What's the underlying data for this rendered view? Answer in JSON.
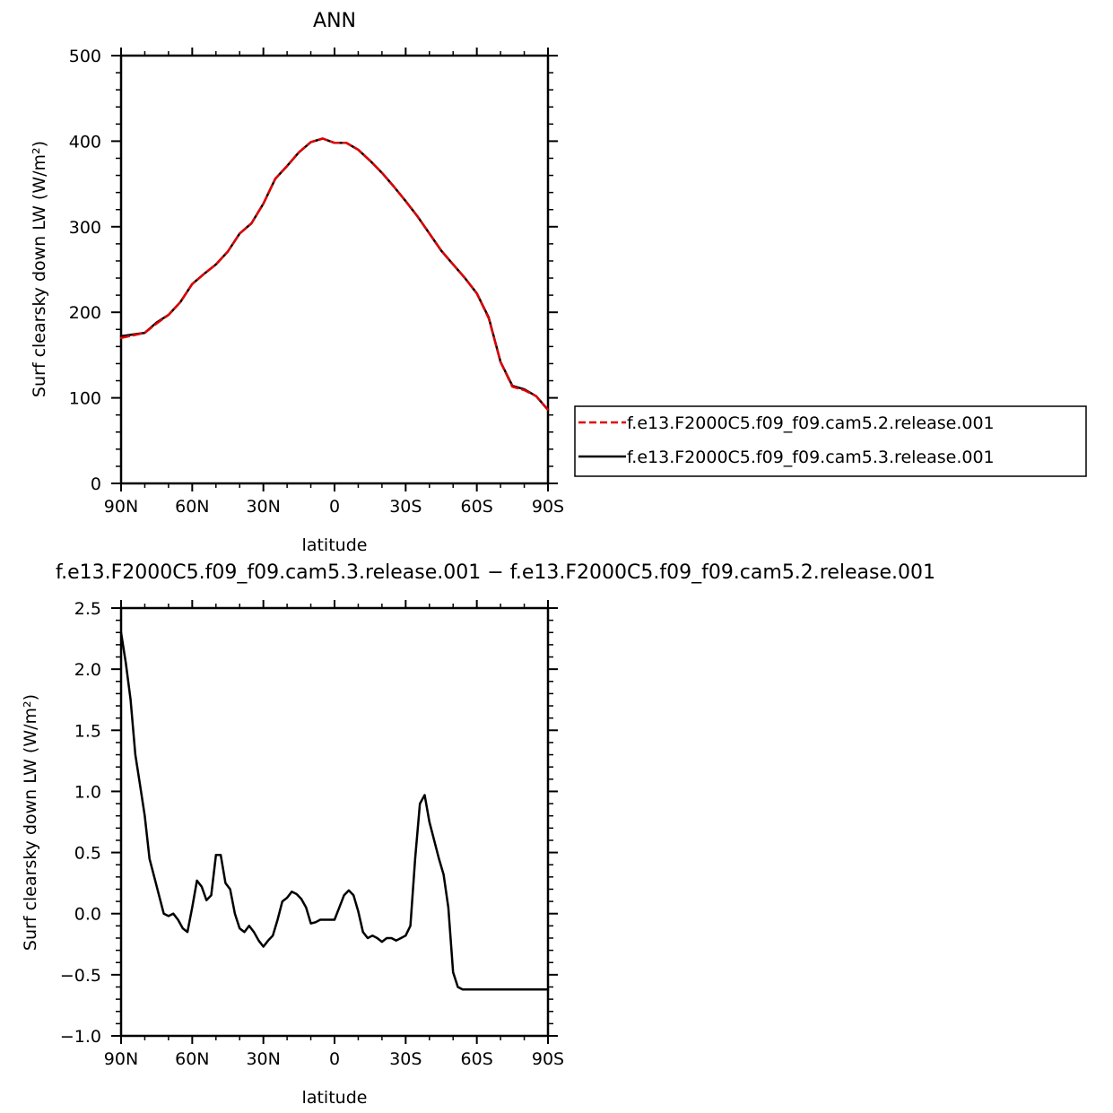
{
  "chart_data": [
    {
      "type": "line",
      "title": "ANN",
      "xlabel": "latitude",
      "ylabel": "Surf clearsky down LW (W/m²)",
      "xlim": [
        90,
        -90
      ],
      "ylim": [
        0,
        500
      ],
      "x_ticks": [
        90,
        60,
        30,
        0,
        -30,
        -60,
        -90
      ],
      "x_tick_labels": [
        "90N",
        "60N",
        "30N",
        "0",
        "30S",
        "60S",
        "90S"
      ],
      "y_ticks": [
        0,
        100,
        200,
        300,
        400,
        500
      ],
      "y_tick_labels": [
        "0",
        "100",
        "200",
        "300",
        "400",
        "500"
      ],
      "legend_position": "right",
      "series": [
        {
          "name": "f.e13.F2000C5.f09_f09.cam5.2.release.001",
          "color": "#e00000",
          "dash": "dashed",
          "x": [
            90,
            85,
            80,
            75,
            70,
            65,
            60,
            55,
            50,
            45,
            40,
            35,
            30,
            25,
            20,
            15,
            10,
            5,
            0,
            -5,
            -10,
            -15,
            -20,
            -25,
            -30,
            -35,
            -40,
            -45,
            -50,
            -55,
            -60,
            -65,
            -70,
            -75,
            -80,
            -85,
            -90
          ],
          "y": [
            170,
            173,
            176,
            187,
            197,
            212,
            233,
            245,
            256,
            271,
            292,
            304,
            327,
            356,
            371,
            387,
            399,
            403,
            398,
            398,
            390,
            377,
            363,
            347,
            330,
            312,
            292,
            272,
            256,
            240,
            222,
            193,
            142,
            113,
            109,
            102,
            86
          ]
        },
        {
          "name": "f.e13.F2000C5.f09_f09.cam5.3.release.001",
          "color": "#000000",
          "dash": "solid",
          "x": [
            90,
            85,
            80,
            75,
            70,
            65,
            60,
            55,
            50,
            45,
            40,
            35,
            30,
            25,
            20,
            15,
            10,
            5,
            0,
            -5,
            -10,
            -15,
            -20,
            -25,
            -30,
            -35,
            -40,
            -45,
            -50,
            -55,
            -60,
            -65,
            -70,
            -75,
            -80,
            -85,
            -90
          ],
          "y": [
            172,
            174,
            176,
            188,
            197,
            212,
            233,
            245,
            256,
            271,
            292,
            304,
            327,
            356,
            371,
            387,
            399,
            403,
            398,
            398,
            390,
            377,
            363,
            347,
            330,
            312,
            292,
            272,
            256,
            240,
            222,
            194,
            142,
            114,
            110,
            102,
            86
          ]
        }
      ]
    },
    {
      "type": "line",
      "title": "f.e13.F2000C5.f09_f09.cam5.3.release.001  −  f.e13.F2000C5.f09_f09.cam5.2.release.001",
      "xlabel": "latitude",
      "ylabel": "Surf clearsky down LW (W/m²)",
      "xlim": [
        90,
        -90
      ],
      "ylim": [
        -1.0,
        2.5
      ],
      "x_ticks": [
        90,
        60,
        30,
        0,
        -30,
        -60,
        -90
      ],
      "x_tick_labels": [
        "90N",
        "60N",
        "30N",
        "0",
        "30S",
        "60S",
        "90S"
      ],
      "y_ticks": [
        -1.0,
        -0.5,
        0.0,
        0.5,
        1.0,
        1.5,
        2.0,
        2.5
      ],
      "y_tick_labels": [
        "−1.0",
        "−0.5",
        "0.0",
        "0.5",
        "1.0",
        "1.5",
        "2.0",
        "2.5"
      ],
      "series": [
        {
          "color": "#000000",
          "dash": "solid",
          "x": [
            90,
            88,
            86,
            84,
            82,
            80,
            78,
            76,
            74,
            72,
            70,
            68,
            66,
            64,
            62,
            60,
            58,
            56,
            54,
            52,
            50,
            48,
            46,
            44,
            42,
            40,
            38,
            36,
            34,
            32,
            30,
            28,
            26,
            24,
            22,
            20,
            18,
            16,
            14,
            12,
            10,
            8,
            6,
            4,
            2,
            0,
            -2,
            -4,
            -6,
            -8,
            -10,
            -12,
            -14,
            -16,
            -18,
            -20,
            -22,
            -24,
            -26,
            -28,
            -30,
            -32,
            -34,
            -36,
            -38,
            -40,
            -42,
            -44,
            -46,
            -48,
            -50,
            -52,
            -54,
            -56,
            -58,
            -60,
            -62,
            -64,
            -66,
            -68,
            -70,
            -72,
            -74,
            -76,
            -78,
            -80,
            -82,
            -84,
            -86,
            -88,
            -90
          ],
          "y": [
            2.3,
            2.05,
            1.75,
            1.3,
            1.05,
            0.8,
            0.45,
            0.3,
            0.15,
            0.0,
            -0.02,
            0.0,
            -0.05,
            -0.12,
            -0.15,
            0.05,
            0.27,
            0.22,
            0.11,
            0.15,
            0.48,
            0.48,
            0.25,
            0.2,
            0.0,
            -0.12,
            -0.15,
            -0.1,
            -0.15,
            -0.22,
            -0.27,
            -0.22,
            -0.18,
            -0.05,
            0.1,
            0.13,
            0.18,
            0.16,
            0.12,
            0.05,
            -0.08,
            -0.07,
            -0.05,
            -0.05,
            -0.05,
            -0.05,
            0.05,
            0.15,
            0.19,
            0.15,
            0.02,
            -0.15,
            -0.2,
            -0.18,
            -0.2,
            -0.23,
            -0.2,
            -0.2,
            -0.22,
            -0.2,
            -0.18,
            -0.1,
            0.45,
            0.9,
            0.97,
            0.75,
            0.6,
            0.45,
            0.32,
            0.05,
            -0.48,
            -0.6,
            -0.62,
            -0.62,
            -0.62,
            -0.62,
            -0.62,
            -0.62,
            -0.62,
            -0.62,
            -0.62,
            -0.62,
            -0.62,
            -0.62,
            -0.62,
            -0.62,
            -0.62,
            -0.62,
            -0.62,
            -0.62,
            -0.62
          ]
        }
      ]
    }
  ]
}
